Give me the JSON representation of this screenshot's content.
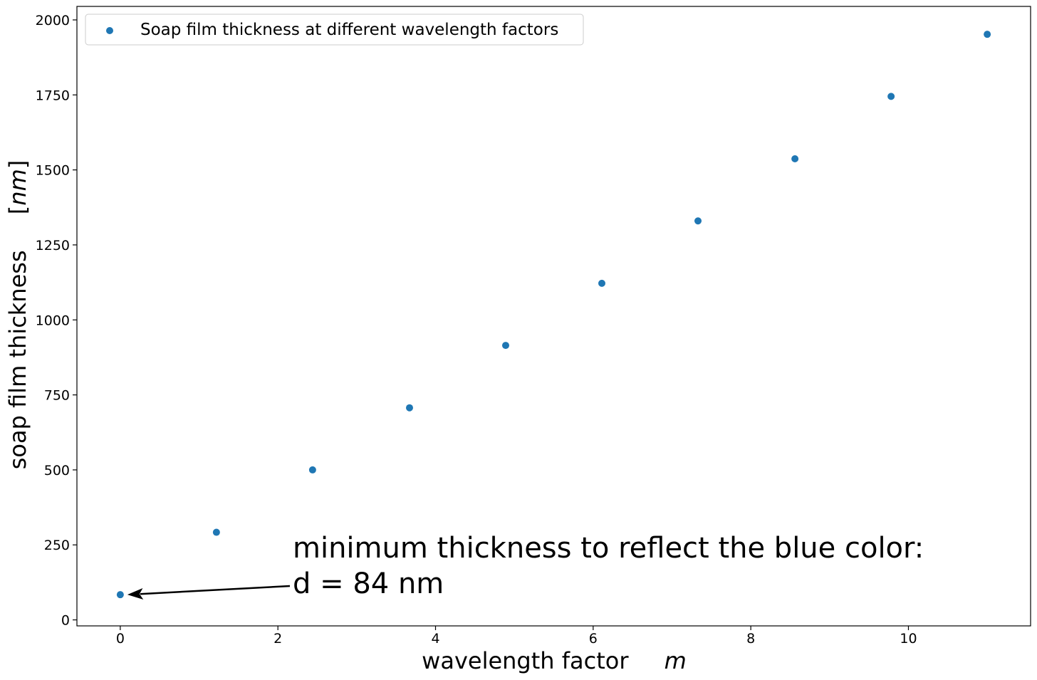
{
  "chart_data": {
    "type": "scatter",
    "xlabel": "wavelength factor",
    "xlabel_symbol": "m",
    "ylabel": "soap film thickness",
    "ylabel_unit": "nm",
    "xlim": [
      -0.55,
      11.55
    ],
    "ylim": [
      -20,
      2045
    ],
    "xticks": [
      0,
      2,
      4,
      6,
      8,
      10
    ],
    "yticks": [
      0,
      250,
      500,
      750,
      1000,
      1250,
      1500,
      1750,
      2000
    ],
    "grid": false,
    "legend_placement": "top-left",
    "series": [
      {
        "name": "Soap film thickness at different wavelength factors",
        "color": "#1f77b4",
        "x": [
          0,
          1.22,
          2.44,
          3.67,
          4.89,
          6.11,
          7.33,
          8.56,
          9.78,
          11.0
        ],
        "y": [
          84,
          292,
          500,
          707,
          915,
          1122,
          1330,
          1537,
          1745,
          1952
        ]
      }
    ],
    "annotation": {
      "line1": "minimum thickness to reflect the blue color:",
      "line2": "d = 84 nm",
      "target_x": 0,
      "target_y": 84
    }
  }
}
